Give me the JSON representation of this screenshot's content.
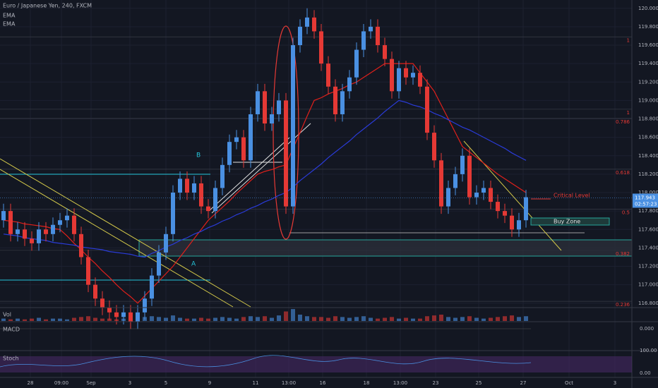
{
  "chart_data": {
    "type": "candlestick",
    "title": "Euro / Japanese Yen, 240, FXCM",
    "indicators": [
      "EMA",
      "EMA"
    ],
    "labels": {
      "b": "B",
      "a": "A",
      "critical": "Critical Level",
      "buy": "Buy Zone"
    },
    "panels": [
      "Vol",
      "MACD",
      "Stoch"
    ],
    "panel_ticks": [
      "0.000",
      "100.00",
      "0.00"
    ],
    "timer": "02:57:23",
    "last": {
      "value": 117.943,
      "label": "117.943"
    },
    "up_color": "#4a90e2",
    "down_color": "#e53935",
    "xlim": [
      0,
      89.5
    ],
    "ylim": [
      116.76,
      120.09
    ],
    "yticks": [
      {
        "value": 116.8,
        "label": "116.800"
      },
      {
        "value": 117.0,
        "label": "117.000"
      },
      {
        "value": 117.2,
        "label": "117.200"
      },
      {
        "value": 117.4,
        "label": "117.400"
      },
      {
        "value": 117.6,
        "label": "117.600"
      },
      {
        "value": 117.8,
        "label": "117.800"
      },
      {
        "value": 118.0,
        "label": "118.000"
      },
      {
        "value": 118.2,
        "label": "118.200"
      },
      {
        "value": 118.4,
        "label": "118.400"
      },
      {
        "value": 118.6,
        "label": "118.600"
      },
      {
        "value": 118.8,
        "label": "118.800"
      },
      {
        "value": 119.0,
        "label": "119.000"
      },
      {
        "value": 119.2,
        "label": "119.200"
      },
      {
        "value": 119.4,
        "label": "119.400"
      },
      {
        "value": 119.6,
        "label": "119.600"
      },
      {
        "value": 119.8,
        "label": "119.800"
      },
      {
        "value": 120.0,
        "label": "120.000"
      }
    ],
    "xticks": [
      {
        "value": 4.3,
        "label": "28"
      },
      {
        "value": 8.7,
        "label": "09:00"
      },
      {
        "value": 12.9,
        "label": "Sep"
      },
      {
        "value": 18.4,
        "label": "3"
      },
      {
        "value": 23.5,
        "label": "5"
      },
      {
        "value": 29.7,
        "label": "9"
      },
      {
        "value": 36.2,
        "label": "11"
      },
      {
        "value": 40.9,
        "label": "13:00"
      },
      {
        "value": 45.7,
        "label": "16"
      },
      {
        "value": 51.9,
        "label": "18"
      },
      {
        "value": 56.7,
        "label": "13:00"
      },
      {
        "value": 61.7,
        "label": "23"
      },
      {
        "value": 67.8,
        "label": "25"
      },
      {
        "value": 74.1,
        "label": "27"
      },
      {
        "value": 80.6,
        "label": "Oct"
      },
      {
        "value": 87.1,
        "label": "3"
      }
    ],
    "fib": [
      {
        "value": 119.69,
        "label": "1"
      },
      {
        "value": 118.905,
        "label": "1"
      },
      {
        "value": 118.805,
        "label": "0.786"
      },
      {
        "value": 118.254,
        "label": "0.618"
      },
      {
        "value": 117.82,
        "label": "0.5"
      },
      {
        "value": 117.374,
        "label": "0.382"
      },
      {
        "value": 116.82,
        "label": "0.236"
      }
    ],
    "open": [
      117.7,
      117.8,
      117.55,
      117.6,
      117.5,
      117.45,
      117.6,
      117.55,
      117.65,
      117.7,
      117.75,
      117.55,
      117.3,
      117.0,
      116.85,
      116.75,
      116.7,
      116.65,
      116.7,
      116.6,
      116.7,
      116.85,
      117.1,
      117.35,
      117.55,
      118.0,
      118.15,
      118.0,
      118.1,
      117.85,
      117.8,
      118.05,
      118.3,
      118.55,
      118.6,
      118.35,
      118.85,
      119.1,
      118.75,
      118.85,
      119.0,
      117.85,
      119.6,
      119.8,
      119.9,
      119.75,
      119.4,
      119.15,
      118.85,
      119.1,
      119.25,
      119.55,
      119.75,
      119.8,
      119.6,
      119.45,
      119.1,
      119.35,
      119.25,
      119.3,
      119.15,
      118.65,
      118.35,
      117.85,
      118.05,
      118.2,
      118.4,
      117.95,
      118.0,
      118.05,
      117.9,
      117.8,
      117.75,
      117.6,
      117.7
    ],
    "high": [
      117.88,
      117.88,
      117.68,
      117.68,
      117.58,
      117.68,
      117.68,
      117.73,
      117.78,
      117.83,
      117.83,
      117.63,
      117.38,
      117.08,
      116.93,
      116.83,
      116.78,
      116.78,
      116.78,
      116.78,
      116.93,
      117.18,
      117.43,
      117.63,
      118.08,
      118.23,
      118.23,
      118.18,
      118.18,
      117.93,
      118.13,
      118.38,
      118.63,
      118.68,
      118.68,
      118.93,
      119.18,
      119.18,
      118.93,
      119.08,
      119.08,
      119.68,
      119.88,
      120.0,
      119.98,
      119.83,
      119.48,
      119.23,
      119.18,
      119.33,
      119.63,
      119.83,
      119.88,
      119.88,
      119.68,
      119.53,
      119.43,
      119.43,
      119.38,
      119.38,
      119.23,
      118.73,
      118.43,
      118.13,
      118.28,
      118.48,
      118.48,
      118.08,
      118.13,
      118.13,
      117.98,
      117.88,
      117.83,
      117.78,
      118.03
    ],
    "low": [
      117.62,
      117.47,
      117.47,
      117.42,
      117.37,
      117.37,
      117.47,
      117.47,
      117.57,
      117.62,
      117.47,
      117.22,
      116.92,
      116.77,
      116.67,
      116.62,
      116.57,
      116.57,
      116.52,
      116.52,
      116.62,
      116.77,
      117.02,
      117.27,
      117.47,
      117.92,
      117.92,
      117.92,
      117.77,
      117.72,
      117.72,
      117.97,
      118.22,
      118.47,
      118.27,
      118.27,
      118.77,
      118.67,
      118.67,
      118.77,
      117.77,
      117.77,
      119.52,
      119.72,
      119.67,
      119.32,
      119.07,
      118.77,
      118.77,
      119.02,
      119.17,
      119.47,
      119.67,
      119.52,
      119.37,
      119.02,
      119.02,
      119.17,
      119.17,
      119.07,
      118.57,
      118.27,
      117.77,
      117.77,
      117.97,
      118.12,
      117.87,
      117.87,
      117.92,
      117.82,
      117.72,
      117.67,
      117.52,
      117.52,
      117.62
    ],
    "close": [
      117.8,
      117.55,
      117.6,
      117.5,
      117.45,
      117.6,
      117.55,
      117.65,
      117.7,
      117.75,
      117.55,
      117.3,
      117.0,
      116.85,
      116.75,
      116.7,
      116.65,
      116.7,
      116.6,
      116.7,
      116.85,
      117.1,
      117.35,
      117.55,
      118.0,
      118.15,
      118.0,
      118.1,
      117.85,
      117.8,
      118.05,
      118.3,
      118.55,
      118.6,
      118.35,
      118.85,
      119.1,
      118.75,
      118.85,
      119.0,
      117.85,
      119.6,
      119.8,
      119.9,
      119.75,
      119.4,
      119.15,
      118.85,
      119.1,
      119.25,
      119.55,
      119.75,
      119.8,
      119.6,
      119.45,
      119.1,
      119.35,
      119.25,
      119.3,
      119.15,
      118.65,
      118.35,
      117.85,
      118.05,
      118.2,
      118.4,
      117.95,
      118.0,
      118.05,
      117.9,
      117.8,
      117.75,
      117.6,
      117.7,
      117.95
    ],
    "series": [
      {
        "name": "EMA",
        "color": "#e0201b",
        "values": [
          117.7,
          117.69,
          117.68,
          117.66,
          117.65,
          117.64,
          117.63,
          117.61,
          117.6,
          117.53,
          117.45,
          117.38,
          117.3,
          117.23,
          117.15,
          117.08,
          117.0,
          116.93,
          116.87,
          116.8,
          116.88,
          116.96,
          117.04,
          117.12,
          117.2,
          117.3,
          117.4,
          117.5,
          117.6,
          117.7,
          117.77,
          117.84,
          117.91,
          117.99,
          118.06,
          118.13,
          118.2,
          118.23,
          118.25,
          118.28,
          118.3,
          118.48,
          118.65,
          118.83,
          119.0,
          119.03,
          119.07,
          119.1,
          119.13,
          119.17,
          119.2,
          119.25,
          119.3,
          119.35,
          119.4,
          119.4,
          119.4,
          119.4,
          119.4,
          119.3,
          119.2,
          119.1,
          118.95,
          118.8,
          118.65,
          118.5,
          118.44,
          118.38,
          118.32,
          118.26,
          118.2,
          118.15,
          118.1,
          118.05,
          118.0
        ]
      },
      {
        "name": "EMA",
        "color": "#2a3bd8",
        "values": [
          117.55,
          117.54,
          117.53,
          117.51,
          117.5,
          117.49,
          117.48,
          117.46,
          117.45,
          117.44,
          117.43,
          117.41,
          117.4,
          117.39,
          117.38,
          117.36,
          117.35,
          117.34,
          117.33,
          117.31,
          117.3,
          117.34,
          117.37,
          117.41,
          117.44,
          117.48,
          117.51,
          117.55,
          117.58,
          117.62,
          117.65,
          117.69,
          117.72,
          117.76,
          117.79,
          117.83,
          117.86,
          117.9,
          117.93,
          117.97,
          118.0,
          118.06,
          118.13,
          118.19,
          118.25,
          118.31,
          118.38,
          118.44,
          118.5,
          118.56,
          118.63,
          118.69,
          118.75,
          118.81,
          118.88,
          118.94,
          119.0,
          118.98,
          118.95,
          118.93,
          118.9,
          118.86,
          118.83,
          118.79,
          118.75,
          118.71,
          118.68,
          118.64,
          118.6,
          118.56,
          118.52,
          118.48,
          118.43,
          118.39,
          118.35
        ]
      }
    ],
    "volume": [
      3,
      2,
      3,
      2,
      3,
      4,
      2,
      3,
      3,
      2,
      4,
      5,
      6,
      4,
      3,
      3,
      2,
      3,
      4,
      3,
      5,
      6,
      5,
      4,
      7,
      4,
      3,
      3,
      4,
      3,
      4,
      5,
      4,
      3,
      5,
      6,
      5,
      6,
      4,
      7,
      12,
      15,
      8,
      6,
      5,
      5,
      4,
      6,
      5,
      4,
      5,
      6,
      4,
      3,
      4,
      5,
      3,
      4,
      3,
      3,
      6,
      7,
      8,
      5,
      4,
      5,
      6,
      4,
      3,
      4,
      5,
      6,
      7,
      5,
      6
    ],
    "volume_lim": [
      0,
      16
    ]
  }
}
